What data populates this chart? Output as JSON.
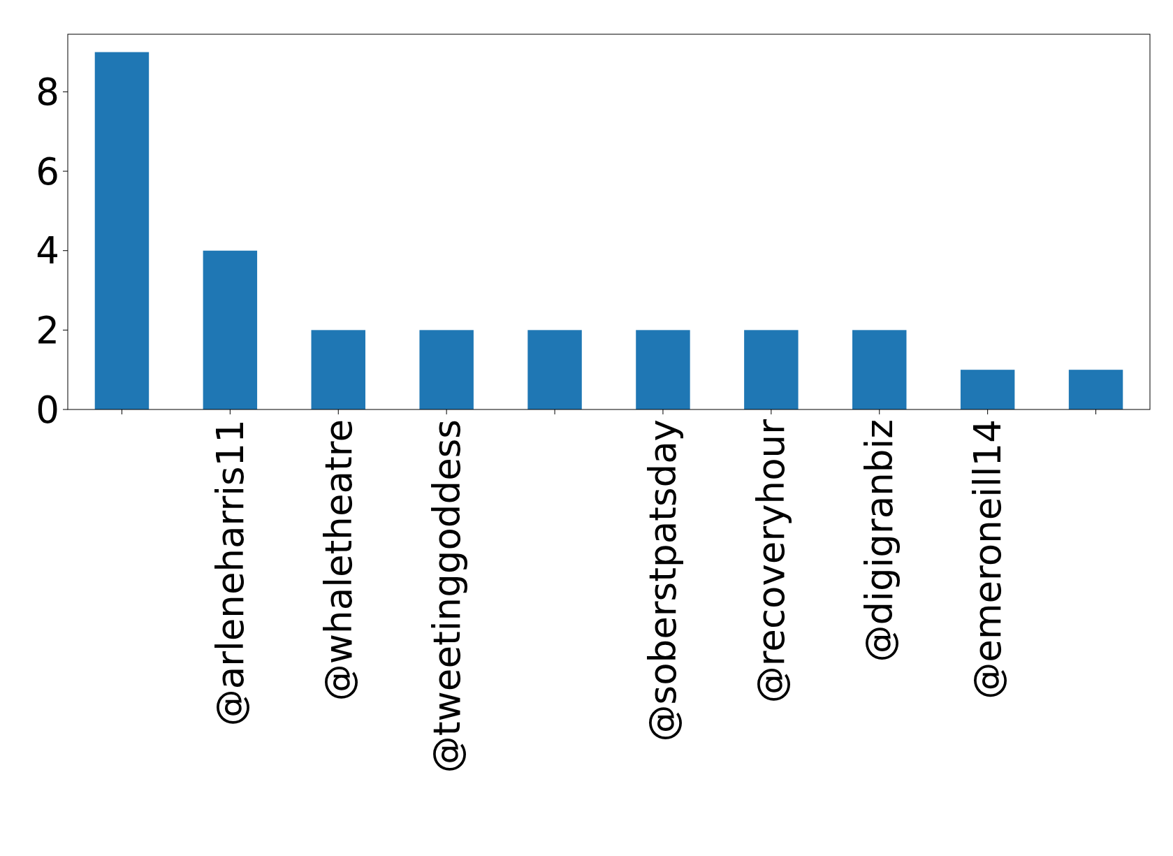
{
  "chart_data": {
    "type": "bar",
    "categories": [
      null,
      "@arleneharris11",
      "@whaletheatre",
      "@tweetinggoddess",
      null,
      "@soberstpatsday",
      "@recoveryhour",
      "@digigranbiz",
      "@emeroneill14",
      null
    ],
    "values": [
      9,
      4,
      2,
      2,
      2,
      2,
      2,
      2,
      1,
      1
    ],
    "color": "#1f77b4",
    "ylim": [
      0,
      9.45
    ],
    "yticks": [
      0,
      2,
      4,
      6,
      8
    ]
  }
}
